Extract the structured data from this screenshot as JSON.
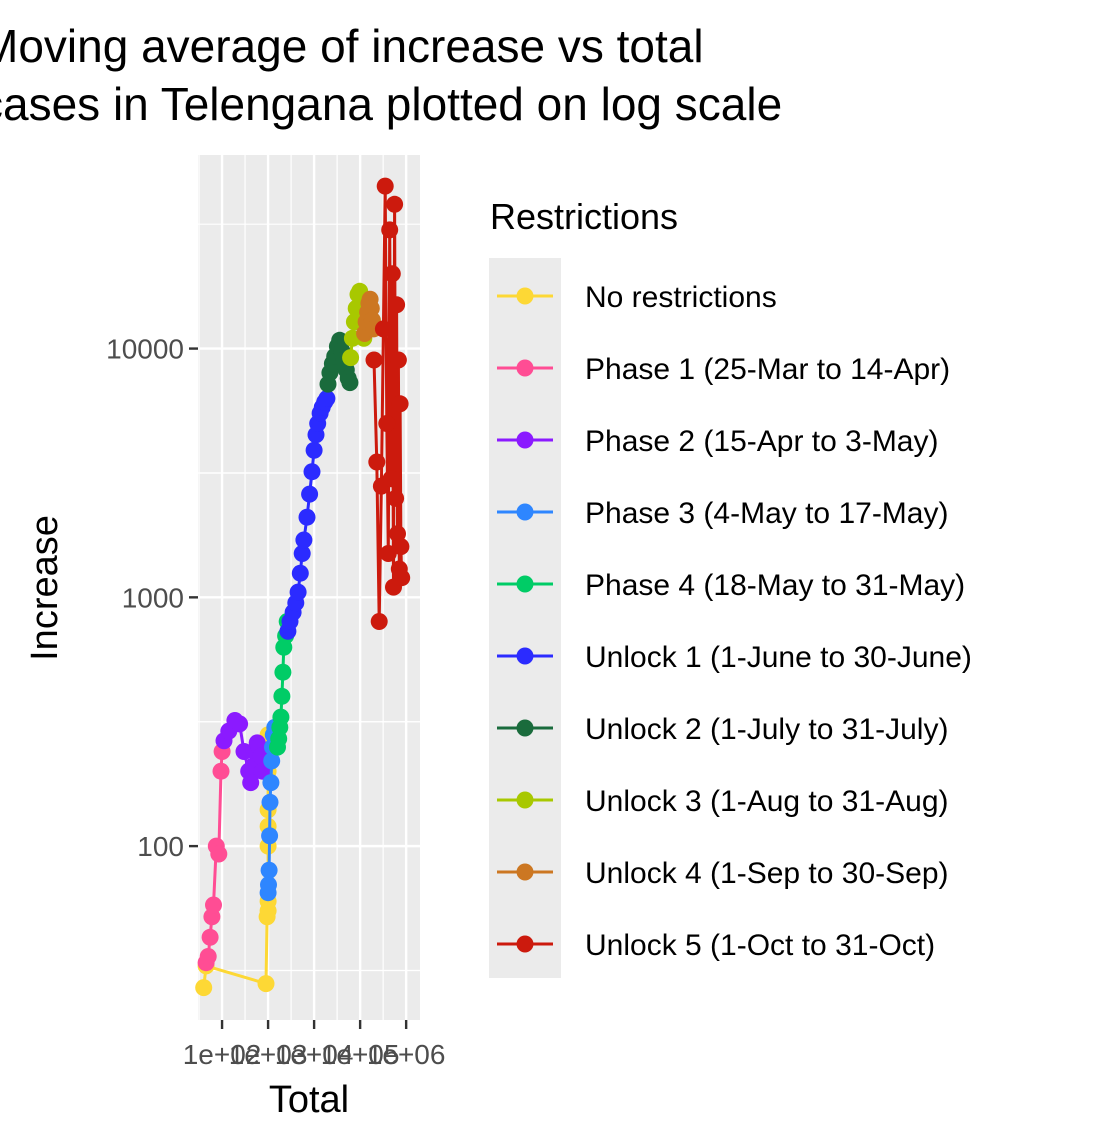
{
  "chart_data": {
    "type": "line",
    "title": "Moving average of increase vs total cases in Telengana plotted on log scale",
    "title_lines": [
      "Moving average of increase vs total",
      "cases in Telengana plotted on log scale"
    ],
    "xlabel": "Total",
    "ylabel": "Increase",
    "xscale": "log10",
    "yscale": "log10",
    "xlim": [
      30,
      2000000
    ],
    "ylim": [
      20,
      60000
    ],
    "x_ticks": [
      100,
      1000,
      10000,
      100000,
      1000000
    ],
    "x_tick_labels": [
      "1e+02",
      "1e+03",
      "1e+04",
      "1e+05",
      "1e+06"
    ],
    "y_ticks": [
      100,
      1000,
      10000
    ],
    "y_tick_labels": [
      "100",
      "1000",
      "10000"
    ],
    "grid": true,
    "legend_placement": "right",
    "legend_title": "Restrictions",
    "panel_background": "#ebebeb",
    "series": [
      {
        "name": "No restrictions",
        "color": "#fdd835",
        "x": [
          40,
          45,
          900,
          950,
          1000,
          1000,
          1000,
          1000,
          1000,
          1000,
          1000,
          1000
        ],
        "y": [
          27,
          33,
          28,
          52,
          55,
          60,
          100,
          120,
          140,
          200,
          250,
          280
        ]
      },
      {
        "name": "Phase 1 (25-Mar to 14-Apr)",
        "color": "#ff4d94",
        "x": [
          45,
          50,
          55,
          60,
          65,
          75,
          85,
          95,
          100
        ],
        "y": [
          34,
          36,
          43,
          52,
          58,
          100,
          93,
          200,
          240
        ]
      },
      {
        "name": "Phase 2 (15-Apr to 3-May)",
        "color": "#8b1aff",
        "x": [
          110,
          140,
          190,
          240,
          300,
          380,
          420,
          470,
          520,
          580,
          640,
          700,
          750
        ],
        "y": [
          265,
          290,
          320,
          310,
          240,
          200,
          180,
          210,
          240,
          260,
          250,
          230,
          200
        ]
      },
      {
        "name": "Phase 3 (4-May to 17-May)",
        "color": "#2e86ff",
        "x": [
          1000,
          1020,
          1050,
          1080,
          1100,
          1150,
          1200,
          1250,
          1300,
          1400,
          1500
        ],
        "y": [
          65,
          70,
          80,
          110,
          150,
          180,
          220,
          250,
          280,
          300,
          290
        ]
      },
      {
        "name": "Phase 4 (18-May to 31-May)",
        "color": "#00cc66",
        "x": [
          1600,
          1700,
          1800,
          1900,
          2000,
          2100,
          2200,
          2400,
          2600
        ],
        "y": [
          250,
          270,
          300,
          330,
          400,
          500,
          630,
          700,
          800
        ]
      },
      {
        "name": "Unlock 1 (1-June to 30-June)",
        "color": "#2b2bff",
        "x": [
          2700,
          3000,
          3500,
          4000,
          4500,
          5000,
          5500,
          6000,
          7000,
          8000,
          9000,
          10000,
          11000,
          12000,
          13500,
          15000,
          17000,
          19000
        ],
        "y": [
          730,
          800,
          870,
          950,
          1050,
          1250,
          1500,
          1700,
          2100,
          2600,
          3200,
          3900,
          4500,
          5000,
          5500,
          5800,
          6100,
          6300
        ]
      },
      {
        "name": "Unlock 2 (1-July to 31-July)",
        "color": "#1a6b3c",
        "x": [
          20000,
          22000,
          25000,
          28000,
          32000,
          36000,
          40000,
          45000,
          50000,
          55000,
          60000
        ],
        "y": [
          7200,
          8000,
          8700,
          9300,
          10200,
          10800,
          9800,
          9000,
          8200,
          7600,
          7300
        ]
      },
      {
        "name": "Unlock 3 (1-Aug to 31-Aug)",
        "color": "#a8c800",
        "x": [
          62000,
          68000,
          75000,
          82000,
          90000,
          98000,
          105000,
          112000,
          120000
        ],
        "y": [
          9200,
          11000,
          12800,
          14500,
          16500,
          17000,
          15500,
          13000,
          11000
        ]
      },
      {
        "name": "Unlock 4 (1-Sep to 30-Sep)",
        "color": "#cc7722",
        "x": [
          125000,
          135000,
          145000,
          155000,
          165000,
          175000,
          185000,
          195000
        ],
        "y": [
          11500,
          12800,
          14000,
          15200,
          15800,
          14500,
          13000,
          12000
        ]
      },
      {
        "name": "Unlock 5 (1-Oct to 31-Oct)",
        "color": "#cc1a0d",
        "x": [
          200000,
          230000,
          260000,
          290000,
          320000,
          350000,
          380000,
          410000,
          440000,
          470000,
          500000,
          530000,
          560000,
          590000,
          620000,
          650000,
          680000,
          710000,
          740000,
          770000,
          800000
        ],
        "y": [
          9000,
          3500,
          800,
          2800,
          12000,
          45000,
          5000,
          1500,
          30000,
          3000,
          20000,
          1100,
          38000,
          2500,
          15000,
          1800,
          9000,
          1300,
          6000,
          1600,
          1200
        ]
      }
    ]
  }
}
